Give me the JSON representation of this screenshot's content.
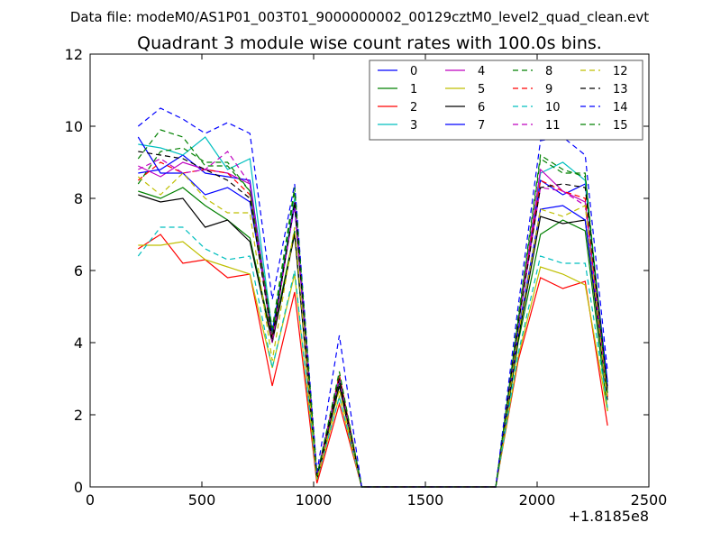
{
  "header": {
    "filename": "Data file: modeM0/AS1P01_003T01_9000000002_00129cztM0_level2_quad_clean.evt"
  },
  "chart_data": {
    "type": "line",
    "title": "Quadrant 3 module wise count rates with 100.0s bins.",
    "xlabel": "",
    "ylabel": "",
    "x_offset_label": "+1.8185e8",
    "xlim": [
      0,
      2500
    ],
    "ylim": [
      0,
      12
    ],
    "xticks": [
      "0",
      "500",
      "1000",
      "1500",
      "2000",
      "2500"
    ],
    "yticks": [
      "0",
      "2",
      "4",
      "6",
      "8",
      "10",
      "12"
    ],
    "grid": false,
    "legend_position": "top-right",
    "x": [
      215,
      315,
      415,
      515,
      615,
      715,
      815,
      915,
      1015,
      1115,
      1215,
      1315,
      1415,
      1515,
      1615,
      1715,
      1815,
      1915,
      2015,
      2115,
      2215,
      2315
    ],
    "series": [
      {
        "name": "0",
        "color": "#0000ff",
        "dashed": false,
        "values": [
          8.7,
          8.8,
          9.2,
          8.7,
          8.6,
          8.5,
          4.2,
          7.9,
          0.3,
          3.0,
          0,
          0,
          0,
          0,
          0,
          0,
          0,
          4.5,
          8.5,
          8.1,
          8.4,
          2.9
        ]
      },
      {
        "name": "1",
        "color": "#008000",
        "dashed": false,
        "values": [
          8.2,
          8.0,
          8.3,
          7.8,
          7.4,
          6.9,
          4.1,
          7.1,
          0.2,
          2.9,
          0,
          0,
          0,
          0,
          0,
          0,
          0,
          4.0,
          7.0,
          7.4,
          7.1,
          2.1
        ]
      },
      {
        "name": "2",
        "color": "#ff0000",
        "dashed": false,
        "values": [
          6.6,
          7.0,
          6.2,
          6.3,
          5.8,
          5.9,
          2.8,
          5.4,
          0.1,
          2.3,
          0,
          0,
          0,
          0,
          0,
          0,
          0,
          3.5,
          5.8,
          5.5,
          5.7,
          1.7
        ]
      },
      {
        "name": "3",
        "color": "#00bfbf",
        "dashed": false,
        "values": [
          9.5,
          9.4,
          9.2,
          9.7,
          8.8,
          9.1,
          4.3,
          8.0,
          0.3,
          3.1,
          0,
          0,
          0,
          0,
          0,
          0,
          0,
          4.6,
          8.7,
          9.0,
          8.5,
          2.5
        ]
      },
      {
        "name": "4",
        "color": "#bf00bf",
        "dashed": false,
        "values": [
          8.9,
          8.6,
          9.0,
          8.8,
          8.7,
          8.4,
          4.2,
          7.8,
          0.3,
          3.0,
          0,
          0,
          0,
          0,
          0,
          0,
          0,
          4.5,
          8.8,
          8.2,
          7.9,
          2.7
        ]
      },
      {
        "name": "5",
        "color": "#bfbf00",
        "dashed": false,
        "values": [
          6.7,
          6.7,
          6.8,
          6.3,
          6.1,
          5.9,
          3.3,
          5.9,
          0.2,
          2.5,
          0,
          0,
          0,
          0,
          0,
          0,
          0,
          3.6,
          6.1,
          5.9,
          5.6,
          2.1
        ]
      },
      {
        "name": "6",
        "color": "#000000",
        "dashed": false,
        "values": [
          8.1,
          7.9,
          8.0,
          7.2,
          7.4,
          6.8,
          4.0,
          7.0,
          0.2,
          2.8,
          0,
          0,
          0,
          0,
          0,
          0,
          0,
          4.1,
          7.5,
          7.3,
          7.4,
          2.4
        ]
      },
      {
        "name": "7",
        "color": "#0000ff",
        "dashed": false,
        "values": [
          9.7,
          8.7,
          8.7,
          8.1,
          8.3,
          7.9,
          4.3,
          7.8,
          0.3,
          3.0,
          0,
          0,
          0,
          0,
          0,
          0,
          0,
          4.3,
          7.7,
          7.8,
          7.4,
          2.8
        ]
      },
      {
        "name": "8",
        "color": "#008000",
        "dashed": true,
        "values": [
          8.4,
          9.3,
          9.4,
          9.0,
          9.0,
          8.2,
          4.2,
          8.2,
          0.3,
          3.1,
          0,
          0,
          0,
          0,
          0,
          0,
          0,
          4.7,
          9.2,
          8.8,
          8.6,
          2.6
        ]
      },
      {
        "name": "9",
        "color": "#ff0000",
        "dashed": true,
        "values": [
          8.5,
          9.0,
          8.7,
          8.8,
          8.7,
          8.1,
          4.1,
          7.9,
          0.3,
          3.1,
          0,
          0,
          0,
          0,
          0,
          0,
          0,
          4.5,
          8.5,
          8.2,
          8.0,
          2.5
        ]
      },
      {
        "name": "10",
        "color": "#00bfbf",
        "dashed": true,
        "values": [
          6.4,
          7.2,
          7.2,
          6.6,
          6.3,
          6.4,
          3.3,
          6.0,
          0.2,
          2.5,
          0,
          0,
          0,
          0,
          0,
          0,
          0,
          3.7,
          6.4,
          6.2,
          6.2,
          2.2
        ]
      },
      {
        "name": "11",
        "color": "#bf00bf",
        "dashed": true,
        "values": [
          8.8,
          9.1,
          8.7,
          8.8,
          9.3,
          8.4,
          4.0,
          7.9,
          0.3,
          3.0,
          0,
          0,
          0,
          0,
          0,
          0,
          0,
          4.5,
          8.3,
          8.2,
          7.8,
          2.6
        ]
      },
      {
        "name": "12",
        "color": "#bfbf00",
        "dashed": true,
        "values": [
          8.6,
          8.1,
          8.7,
          8.0,
          7.6,
          7.6,
          3.5,
          7.2,
          0.2,
          2.7,
          0,
          0,
          0,
          0,
          0,
          0,
          0,
          4.2,
          7.7,
          7.5,
          7.8,
          2.4
        ]
      },
      {
        "name": "13",
        "color": "#000000",
        "dashed": true,
        "values": [
          9.3,
          9.2,
          9.1,
          8.8,
          8.5,
          8.0,
          4.1,
          7.9,
          0.3,
          3.0,
          0,
          0,
          0,
          0,
          0,
          0,
          0,
          4.5,
          8.3,
          8.4,
          8.3,
          2.7
        ]
      },
      {
        "name": "14",
        "color": "#0000ff",
        "dashed": true,
        "values": [
          10.0,
          10.5,
          10.2,
          9.8,
          10.1,
          9.8,
          5.2,
          8.4,
          0.4,
          4.2,
          0,
          0,
          0,
          0,
          0,
          0,
          0,
          5.0,
          9.6,
          9.7,
          9.2,
          3.2
        ]
      },
      {
        "name": "15",
        "color": "#008000",
        "dashed": true,
        "values": [
          9.1,
          9.9,
          9.7,
          8.9,
          8.9,
          8.2,
          4.4,
          8.3,
          0.3,
          3.2,
          0,
          0,
          0,
          0,
          0,
          0,
          0,
          4.6,
          9.1,
          8.7,
          8.7,
          2.6
        ]
      }
    ]
  }
}
